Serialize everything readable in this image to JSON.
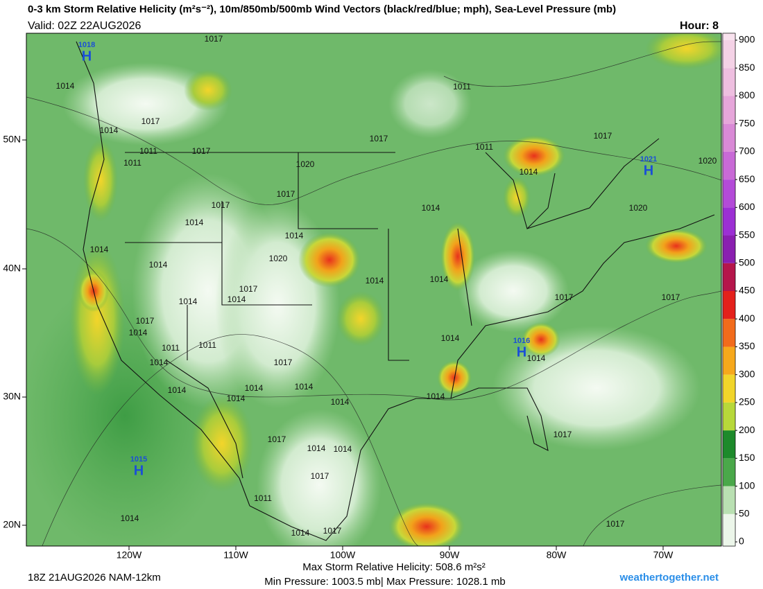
{
  "header": {
    "title": "0-3 km Storm Relative Helicity (m²s⁻²), 10m/850mb/500mb Wind Vectors (black/red/blue; mph), Sea-Level Pressure (mb)",
    "valid": "Valid: 02Z 22AUG2026",
    "hour": "Hour: 8"
  },
  "colorbar": {
    "ticks": [
      0,
      50,
      100,
      150,
      200,
      250,
      300,
      350,
      400,
      450,
      500,
      550,
      600,
      650,
      700,
      750,
      800,
      850,
      900
    ],
    "lim": [
      0,
      900
    ]
  },
  "map": {
    "lon_labels": [
      "120W",
      "110W",
      "100W",
      "90W",
      "80W",
      "70W"
    ],
    "lat_labels": [
      "50N",
      "40N",
      "30N",
      "20N"
    ],
    "isobar_labels": [
      "1017",
      "1014",
      "1014",
      "1017",
      "1011",
      "1011",
      "1017",
      "1020",
      "1017",
      "1017",
      "1014",
      "1014",
      "1014",
      "1014",
      "1020",
      "1017",
      "1014",
      "1014",
      "1017",
      "1014",
      "1011",
      "1011",
      "1014",
      "1017",
      "1014",
      "1014",
      "1014",
      "1014",
      "1014",
      "1017",
      "1014",
      "1014",
      "1017",
      "1011",
      "1014",
      "1014",
      "1017",
      "1011",
      "1017",
      "1011",
      "1014",
      "1017",
      "1020",
      "1020",
      "1014",
      "1014",
      "1014",
      "1017",
      "1017",
      "1014",
      "1014",
      "1014",
      "1017",
      "1017"
    ],
    "highs": [
      {
        "pressure": "1018",
        "symbol": "H"
      },
      {
        "pressure": "1021",
        "symbol": "H"
      },
      {
        "pressure": "1016",
        "symbol": "H"
      },
      {
        "pressure": "1015",
        "symbol": "H"
      }
    ]
  },
  "footer": {
    "run": "18Z 21AUG2026 NAM-12km",
    "max_helicity": "Max Storm Relative Helicity: 508.6 m²s²",
    "pressure_range": "Min Pressure: 1003.5 mb| Max Pressure: 1028.1 mb",
    "site": "weathertogether.net"
  }
}
